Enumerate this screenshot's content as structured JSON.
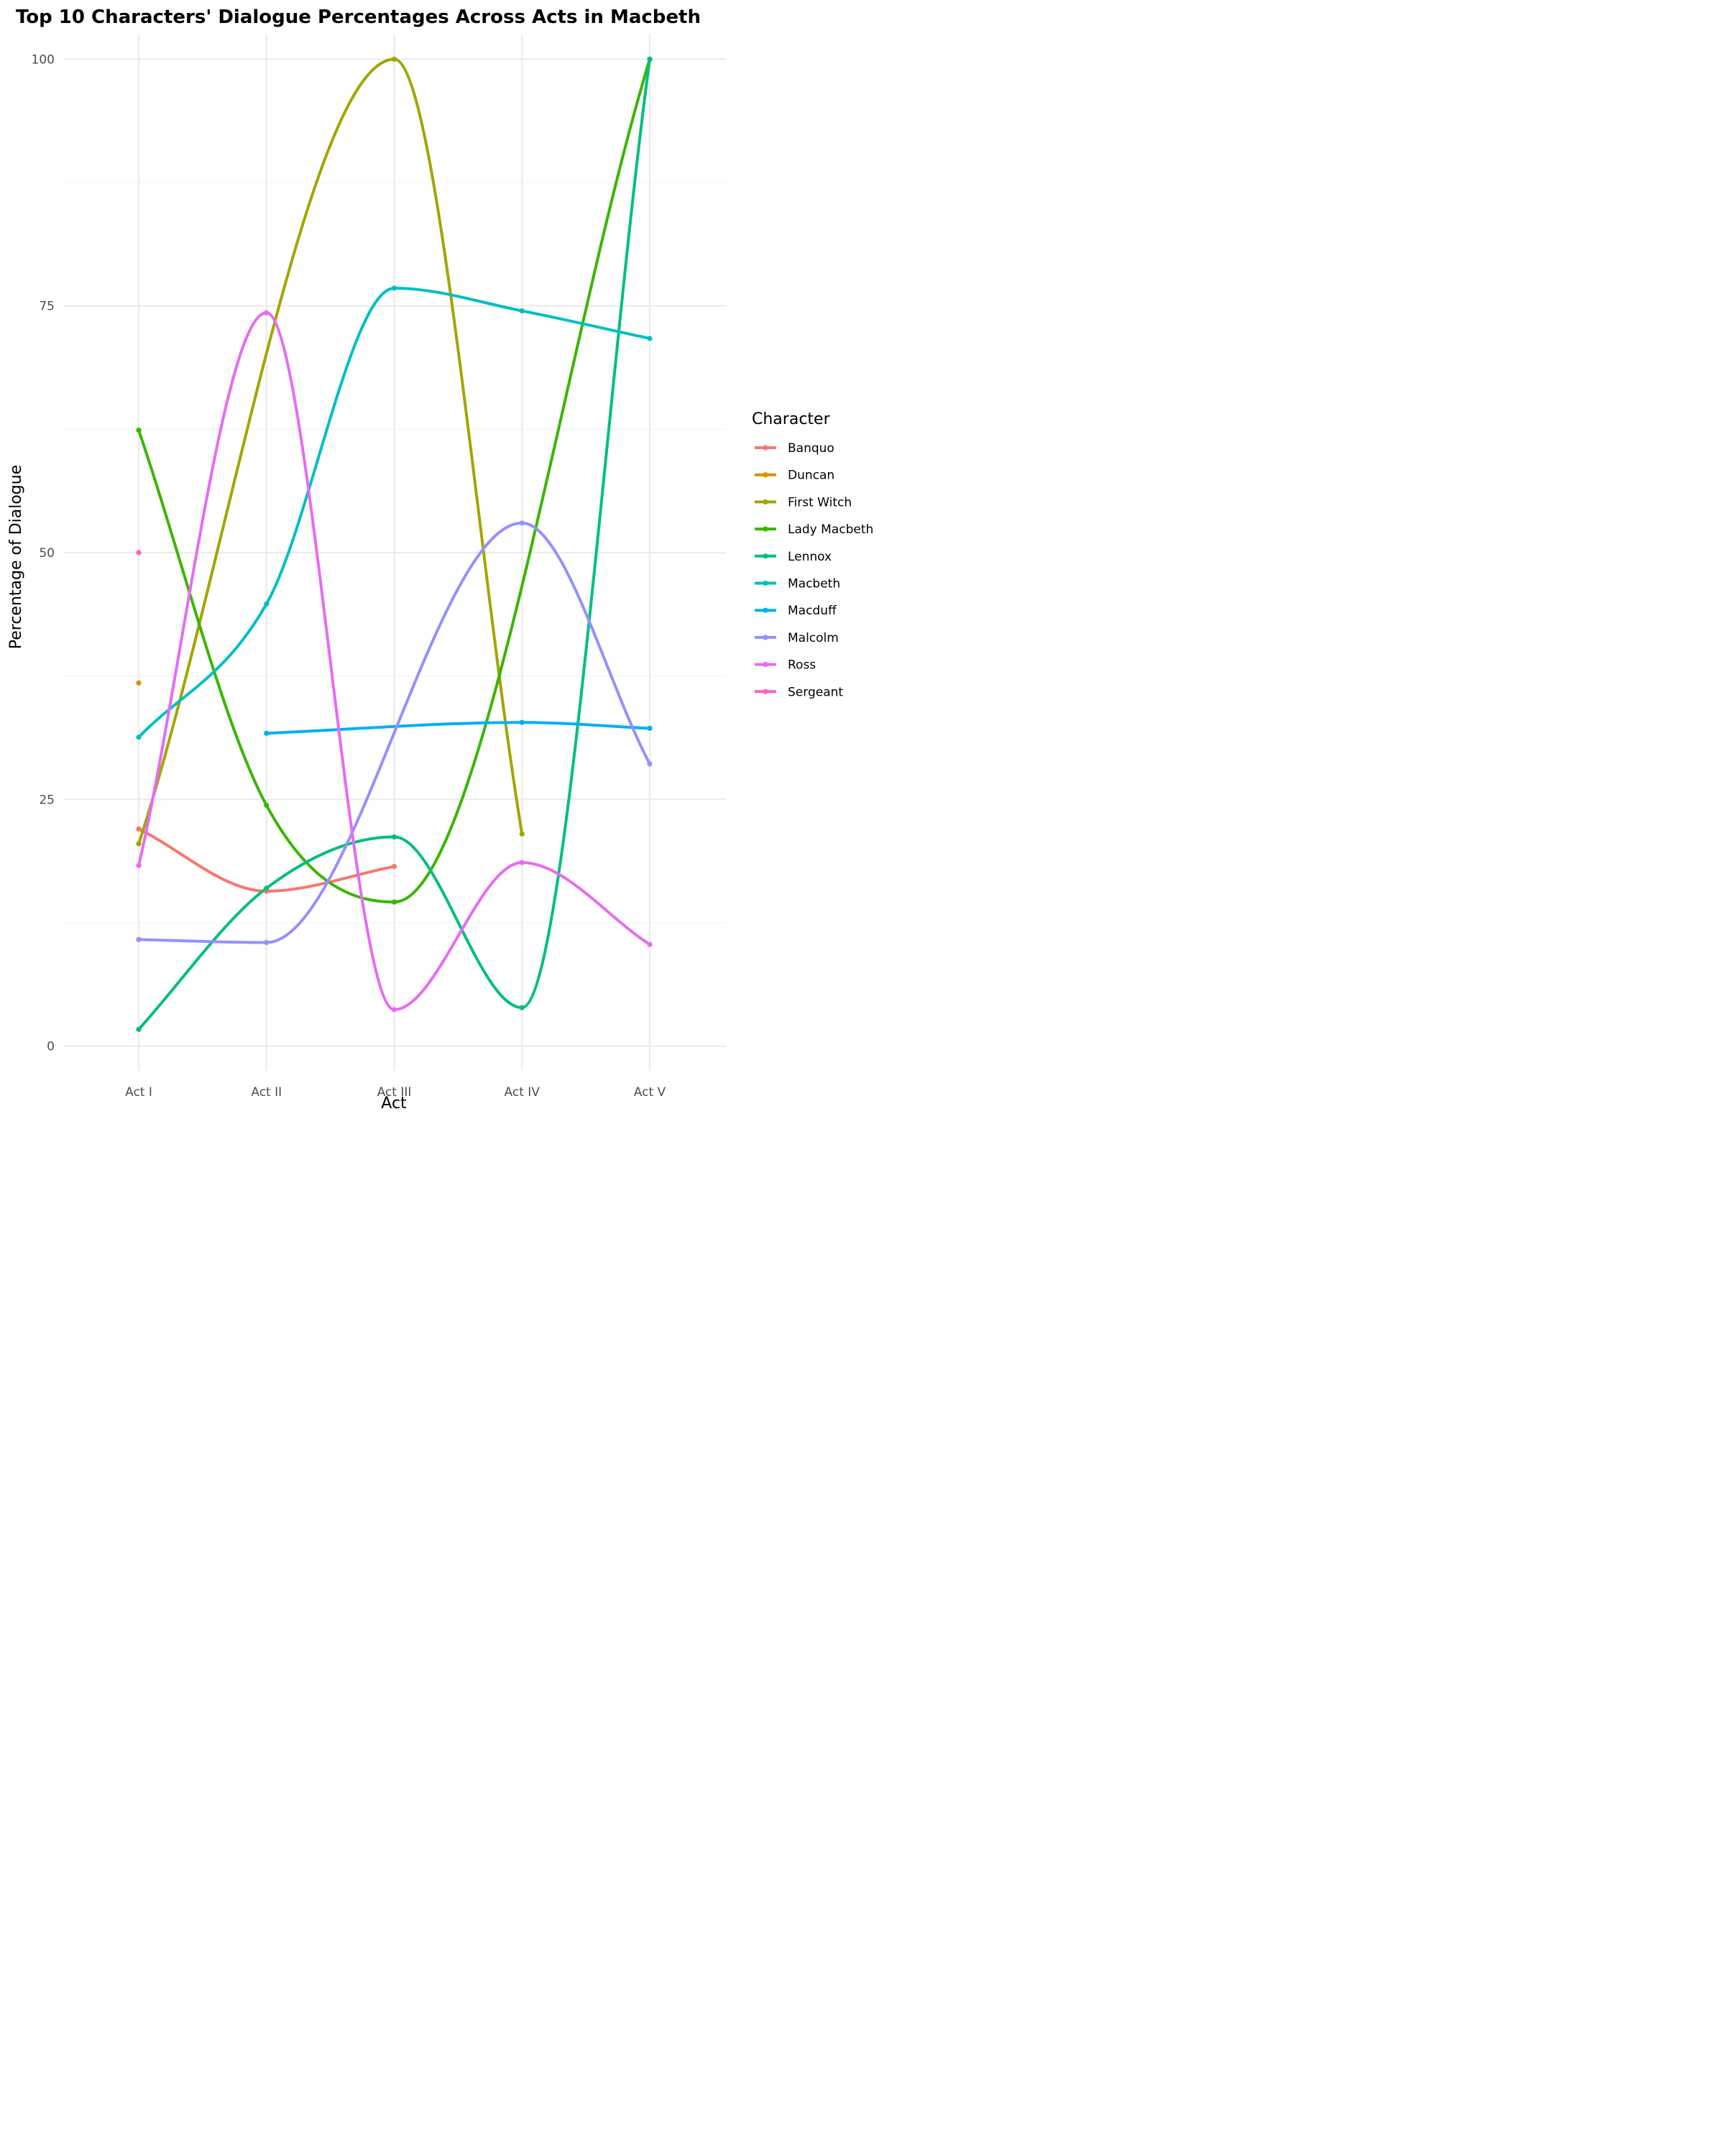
{
  "chart_data": {
    "type": "line",
    "title": "Top 10 Characters' Dialogue Percentages Across Acts in Macbeth",
    "xlabel": "Act",
    "ylabel": "Percentage of Dialogue",
    "categories": [
      "Act I",
      "Act II",
      "Act III",
      "Act IV",
      "Act V"
    ],
    "ylim": [
      -2.5,
      102.5
    ],
    "yticks": [
      0,
      25,
      50,
      75,
      100
    ],
    "grid": true,
    "smoothed": true,
    "legend": {
      "title": "Character",
      "position": "right"
    },
    "series": [
      {
        "name": "Banquo",
        "color": "#F8766D",
        "values": [
          22.0,
          15.7,
          18.2,
          null,
          null
        ]
      },
      {
        "name": "Duncan",
        "color": "#D89000",
        "values": [
          36.8,
          null,
          null,
          null,
          null
        ]
      },
      {
        "name": "First Witch",
        "color": "#A3A500",
        "values": [
          20.5,
          null,
          100.0,
          21.5,
          null
        ]
      },
      {
        "name": "Lady Macbeth",
        "color": "#39B600",
        "values": [
          62.4,
          24.4,
          14.6,
          null,
          100.0
        ]
      },
      {
        "name": "Lennox",
        "color": "#00BF7D",
        "values": [
          1.7,
          16.0,
          21.2,
          3.9,
          100.0
        ]
      },
      {
        "name": "Macbeth",
        "color": "#00BFC4",
        "values": [
          31.3,
          44.8,
          76.8,
          74.5,
          71.7
        ]
      },
      {
        "name": "Macduff",
        "color": "#00B0F6",
        "values": [
          null,
          31.7,
          null,
          32.8,
          32.2
        ]
      },
      {
        "name": "Malcolm",
        "color": "#9590FF",
        "values": [
          10.8,
          10.5,
          null,
          53.0,
          28.6
        ]
      },
      {
        "name": "Ross",
        "color": "#E76BF3",
        "values": [
          18.3,
          74.3,
          3.7,
          18.6,
          10.3
        ]
      },
      {
        "name": "Sergeant",
        "color": "#FF62BC",
        "values": [
          50.0,
          null,
          null,
          null,
          null
        ]
      }
    ]
  }
}
